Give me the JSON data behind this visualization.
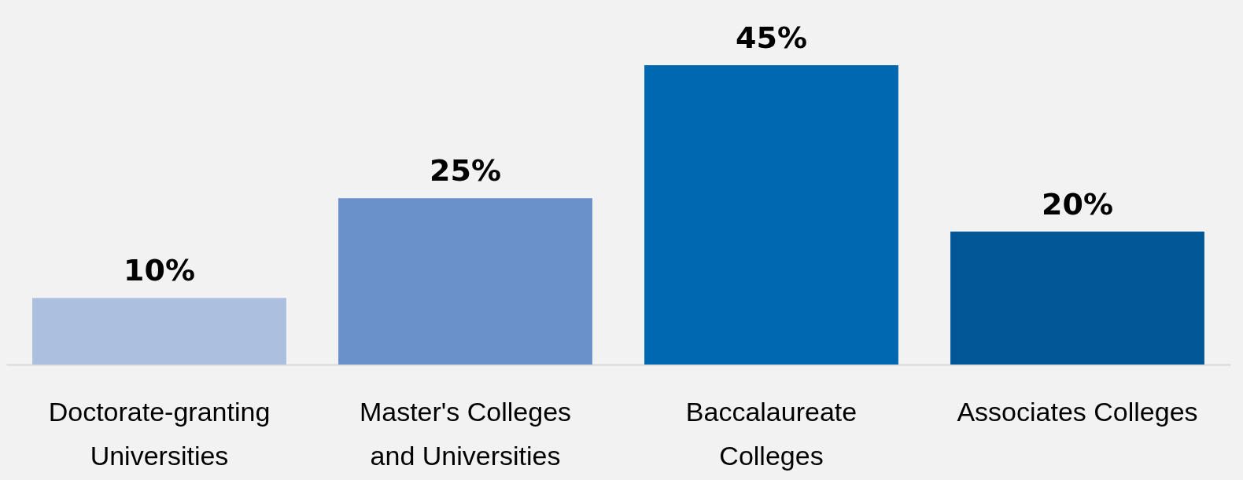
{
  "chart_data": {
    "type": "bar",
    "categories": [
      "Doctorate-granting Universities",
      "Master's Colleges and Universities",
      "Baccalaureate Colleges",
      "Associates Colleges"
    ],
    "values": [
      10,
      25,
      45,
      20
    ],
    "colors": [
      "#adbfdf",
      "#6a91c9",
      "#0067b1",
      "#025797"
    ],
    "value_labels": [
      "10%",
      "25%",
      "45%",
      "20%"
    ]
  }
}
